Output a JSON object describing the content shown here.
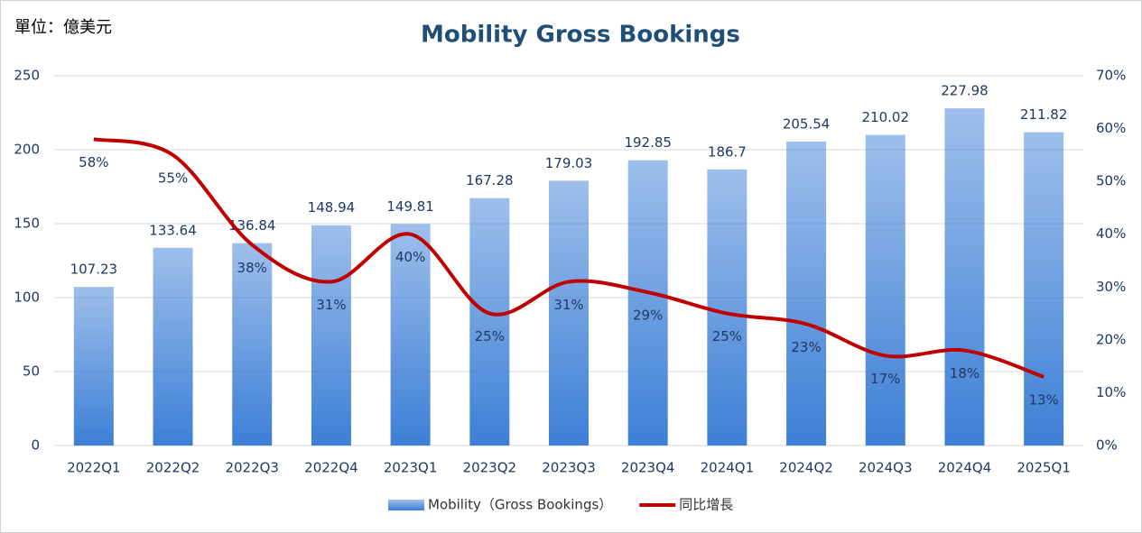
{
  "chart_data": {
    "type": "combo",
    "title": "Mobility Gross Bookings",
    "unit_label": "單位：億美元",
    "categories": [
      "2022Q1",
      "2022Q2",
      "2022Q3",
      "2022Q4",
      "2023Q1",
      "2023Q2",
      "2023Q3",
      "2023Q4",
      "2024Q1",
      "2024Q2",
      "2024Q3",
      "2024Q4",
      "2025Q1"
    ],
    "series": [
      {
        "name": "Mobility（Gross Bookings）",
        "type": "bar",
        "color": "#3d7fd6",
        "values": [
          107.23,
          133.64,
          136.84,
          148.94,
          149.81,
          167.28,
          179.03,
          192.85,
          186.7,
          205.54,
          210.02,
          227.98,
          211.82
        ]
      },
      {
        "name": "同比增長",
        "type": "line",
        "axis": "y2",
        "color": "#c00000",
        "values": [
          58,
          55,
          38,
          31,
          40,
          25,
          31,
          29,
          25,
          23,
          17,
          18,
          13
        ],
        "value_labels": [
          "58%",
          "55%",
          "38%",
          "31%",
          "40%",
          "25%",
          "31%",
          "29%",
          "25%",
          "23%",
          "17%",
          "18%",
          "13%"
        ]
      }
    ],
    "ylim": [
      0,
      250
    ],
    "yticks": [
      0,
      50,
      100,
      150,
      200,
      250
    ],
    "y2lim": [
      0,
      70
    ],
    "y2ticks": [
      {
        "value": 0,
        "label": "0%"
      },
      {
        "value": 10,
        "label": "10%"
      },
      {
        "value": 20,
        "label": "20%"
      },
      {
        "value": 30,
        "label": "30%"
      },
      {
        "value": 40,
        "label": "40%"
      },
      {
        "value": 50,
        "label": "50%"
      },
      {
        "value": 60,
        "label": "60%"
      },
      {
        "value": 70,
        "label": "70%"
      }
    ],
    "grid": true,
    "legend": "bottom"
  }
}
